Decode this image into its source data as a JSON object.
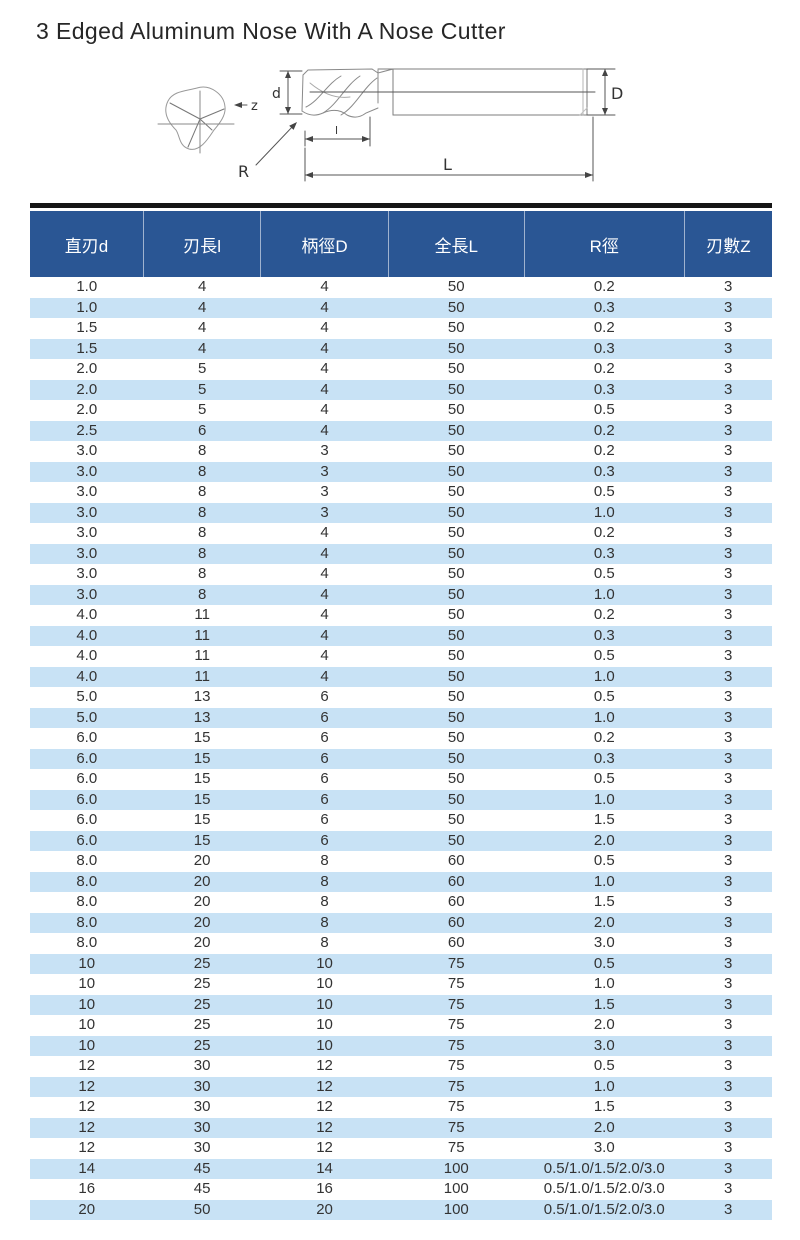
{
  "page_title": "3 Edged Aluminum Nose With A Nose Cutter",
  "diagram": {
    "labels": {
      "flutes": "z",
      "cut_diameter": "d",
      "shank_diameter": "D",
      "flute_length": "l",
      "corner_radius": "R",
      "overall_length": "L"
    }
  },
  "table": {
    "headers": [
      "直刃d",
      "刃長l",
      "柄徑D",
      "全長L",
      "R徑",
      "刃數Z"
    ],
    "rows": [
      [
        "1.0",
        "4",
        "4",
        "50",
        "0.2",
        "3"
      ],
      [
        "1.0",
        "4",
        "4",
        "50",
        "0.3",
        "3"
      ],
      [
        "1.5",
        "4",
        "4",
        "50",
        "0.2",
        "3"
      ],
      [
        "1.5",
        "4",
        "4",
        "50",
        "0.3",
        "3"
      ],
      [
        "2.0",
        "5",
        "4",
        "50",
        "0.2",
        "3"
      ],
      [
        "2.0",
        "5",
        "4",
        "50",
        "0.3",
        "3"
      ],
      [
        "2.0",
        "5",
        "4",
        "50",
        "0.5",
        "3"
      ],
      [
        "2.5",
        "6",
        "4",
        "50",
        "0.2",
        "3"
      ],
      [
        "3.0",
        "8",
        "3",
        "50",
        "0.2",
        "3"
      ],
      [
        "3.0",
        "8",
        "3",
        "50",
        "0.3",
        "3"
      ],
      [
        "3.0",
        "8",
        "3",
        "50",
        "0.5",
        "3"
      ],
      [
        "3.0",
        "8",
        "3",
        "50",
        "1.0",
        "3"
      ],
      [
        "3.0",
        "8",
        "4",
        "50",
        "0.2",
        "3"
      ],
      [
        "3.0",
        "8",
        "4",
        "50",
        "0.3",
        "3"
      ],
      [
        "3.0",
        "8",
        "4",
        "50",
        "0.5",
        "3"
      ],
      [
        "3.0",
        "8",
        "4",
        "50",
        "1.0",
        "3"
      ],
      [
        "4.0",
        "11",
        "4",
        "50",
        "0.2",
        "3"
      ],
      [
        "4.0",
        "11",
        "4",
        "50",
        "0.3",
        "3"
      ],
      [
        "4.0",
        "11",
        "4",
        "50",
        "0.5",
        "3"
      ],
      [
        "4.0",
        "11",
        "4",
        "50",
        "1.0",
        "3"
      ],
      [
        "5.0",
        "13",
        "6",
        "50",
        "0.5",
        "3"
      ],
      [
        "5.0",
        "13",
        "6",
        "50",
        "1.0",
        "3"
      ],
      [
        "6.0",
        "15",
        "6",
        "50",
        "0.2",
        "3"
      ],
      [
        "6.0",
        "15",
        "6",
        "50",
        "0.3",
        "3"
      ],
      [
        "6.0",
        "15",
        "6",
        "50",
        "0.5",
        "3"
      ],
      [
        "6.0",
        "15",
        "6",
        "50",
        "1.0",
        "3"
      ],
      [
        "6.0",
        "15",
        "6",
        "50",
        "1.5",
        "3"
      ],
      [
        "6.0",
        "15",
        "6",
        "50",
        "2.0",
        "3"
      ],
      [
        "8.0",
        "20",
        "8",
        "60",
        "0.5",
        "3"
      ],
      [
        "8.0",
        "20",
        "8",
        "60",
        "1.0",
        "3"
      ],
      [
        "8.0",
        "20",
        "8",
        "60",
        "1.5",
        "3"
      ],
      [
        "8.0",
        "20",
        "8",
        "60",
        "2.0",
        "3"
      ],
      [
        "8.0",
        "20",
        "8",
        "60",
        "3.0",
        "3"
      ],
      [
        "10",
        "25",
        "10",
        "75",
        "0.5",
        "3"
      ],
      [
        "10",
        "25",
        "10",
        "75",
        "1.0",
        "3"
      ],
      [
        "10",
        "25",
        "10",
        "75",
        "1.5",
        "3"
      ],
      [
        "10",
        "25",
        "10",
        "75",
        "2.0",
        "3"
      ],
      [
        "10",
        "25",
        "10",
        "75",
        "3.0",
        "3"
      ],
      [
        "12",
        "30",
        "12",
        "75",
        "0.5",
        "3"
      ],
      [
        "12",
        "30",
        "12",
        "75",
        "1.0",
        "3"
      ],
      [
        "12",
        "30",
        "12",
        "75",
        "1.5",
        "3"
      ],
      [
        "12",
        "30",
        "12",
        "75",
        "2.0",
        "3"
      ],
      [
        "12",
        "30",
        "12",
        "75",
        "3.0",
        "3"
      ],
      [
        "14",
        "45",
        "14",
        "100",
        "0.5/1.0/1.5/2.0/3.0",
        "3"
      ],
      [
        "16",
        "45",
        "16",
        "100",
        "0.5/1.0/1.5/2.0/3.0",
        "3"
      ],
      [
        "20",
        "50",
        "20",
        "100",
        "0.5/1.0/1.5/2.0/3.0",
        "3"
      ]
    ]
  },
  "colors": {
    "header_bg": "#2a5694",
    "header_text": "#ffffff",
    "row_stripe": "#c8e2f5",
    "row_text": "#333333",
    "divider_bar": "#151515"
  }
}
